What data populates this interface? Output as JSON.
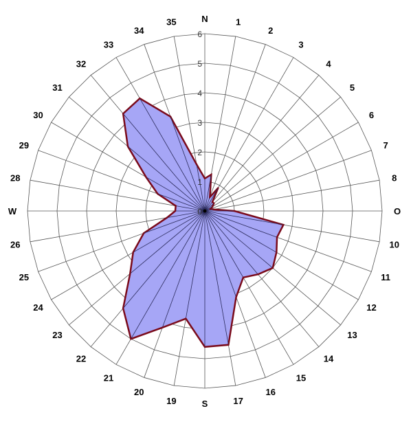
{
  "chart_data": {
    "type": "radar",
    "title": "",
    "direction_labels": [
      "N",
      "1",
      "2",
      "3",
      "4",
      "5",
      "6",
      "7",
      "8",
      "O",
      "10",
      "11",
      "12",
      "13",
      "14",
      "15",
      "16",
      "17",
      "S",
      "19",
      "20",
      "21",
      "22",
      "23",
      "24",
      "25",
      "26",
      "W",
      "28",
      "29",
      "30",
      "31",
      "32",
      "33",
      "34",
      "35"
    ],
    "radial_ticks": [
      "0",
      "1",
      "2",
      "3",
      "4",
      "5",
      "6"
    ],
    "rlim": [
      0,
      6
    ],
    "grid": true,
    "series": [
      {
        "values": [
          1.1,
          1.25,
          0.5,
          0.9,
          0.4,
          0.4,
          0.3,
          0.2,
          0.3,
          1.0,
          2.7,
          2.6,
          2.8,
          3.0,
          2.8,
          2.6,
          3.1,
          4.6,
          4.6,
          3.7,
          4.2,
          5.0,
          4.3,
          3.3,
          2.8,
          2.2,
          1.3,
          1.0,
          1.0,
          1.7,
          2.3,
          3.4,
          4.3,
          4.4,
          3.4,
          1.6
        ],
        "color": "#a6a6f6",
        "stroke": "#7a0a1a"
      }
    ]
  }
}
